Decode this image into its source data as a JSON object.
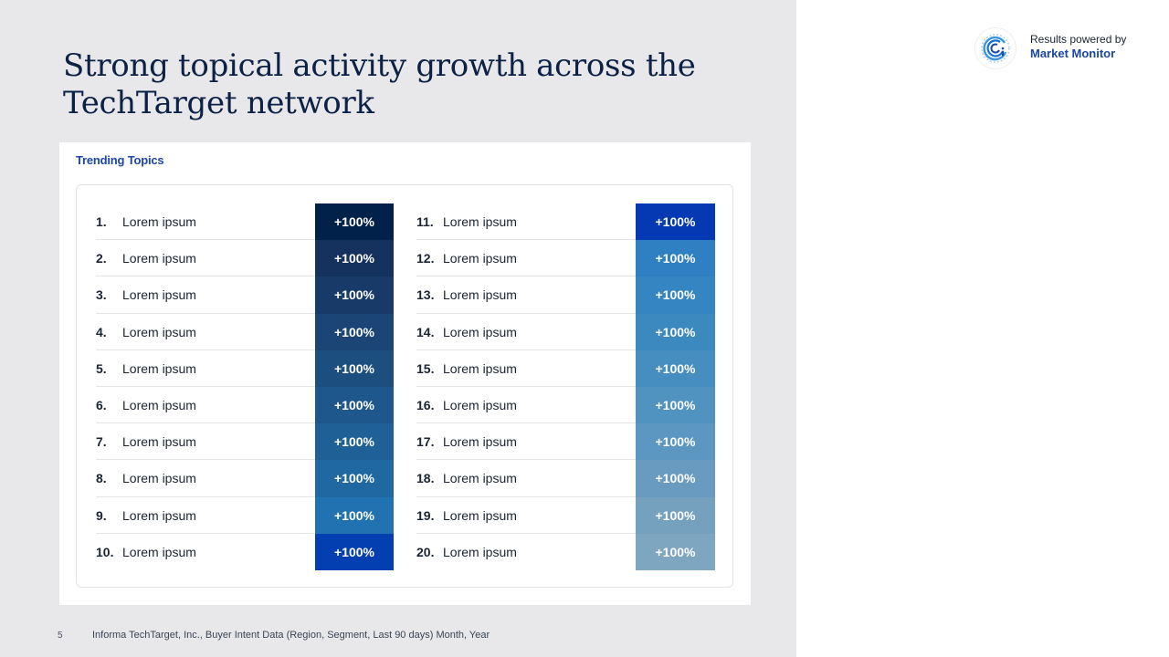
{
  "slide": {
    "title": "Strong topical activity growth across the TechTarget network",
    "page_number": "5",
    "source": "Informa TechTarget, Inc., Buyer Intent Data (Region, Segment, Last 90 days) Month, Year"
  },
  "brand": {
    "line1": "Results powered by",
    "line2": "Market Monitor",
    "icon": "market-monitor-logo-icon"
  },
  "card": {
    "title": "Trending Topics"
  },
  "topics_left": [
    {
      "rank": "1.",
      "label": "Lorem ipsum",
      "change": "+100%",
      "color": "#02214a"
    },
    {
      "rank": "2.",
      "label": "Lorem ipsum",
      "change": "+100%",
      "color": "#15315e"
    },
    {
      "rank": "3.",
      "label": "Lorem ipsum",
      "change": "+100%",
      "color": "#173a68"
    },
    {
      "rank": "4.",
      "label": "Lorem ipsum",
      "change": "+100%",
      "color": "#1a4574"
    },
    {
      "rank": "5.",
      "label": "Lorem ipsum",
      "change": "+100%",
      "color": "#1c4f80"
    },
    {
      "rank": "6.",
      "label": "Lorem ipsum",
      "change": "+100%",
      "color": "#1e578b"
    },
    {
      "rank": "7.",
      "label": "Lorem ipsum",
      "change": "+100%",
      "color": "#1f6096"
    },
    {
      "rank": "8.",
      "label": "Lorem ipsum",
      "change": "+100%",
      "color": "#1f68a2"
    },
    {
      "rank": "9.",
      "label": "Lorem ipsum",
      "change": "+100%",
      "color": "#2072b0"
    },
    {
      "rank": "10.",
      "label": "Lorem ipsum",
      "change": "+100%",
      "color": "#033fb0"
    }
  ],
  "topics_right": [
    {
      "rank": "11.",
      "label": "Lorem ipsum",
      "change": "+100%",
      "color": "#0439b3"
    },
    {
      "rank": "12.",
      "label": "Lorem ipsum",
      "change": "+100%",
      "color": "#2e80c2"
    },
    {
      "rank": "13.",
      "label": "Lorem ipsum",
      "change": "+100%",
      "color": "#3585c2"
    },
    {
      "rank": "14.",
      "label": "Lorem ipsum",
      "change": "+100%",
      "color": "#3c89c0"
    },
    {
      "rank": "15.",
      "label": "Lorem ipsum",
      "change": "+100%",
      "color": "#458ebf"
    },
    {
      "rank": "16.",
      "label": "Lorem ipsum",
      "change": "+100%",
      "color": "#5092c0"
    },
    {
      "rank": "17.",
      "label": "Lorem ipsum",
      "change": "+100%",
      "color": "#5b97c0"
    },
    {
      "rank": "18.",
      "label": "Lorem ipsum",
      "change": "+100%",
      "color": "#689bbf"
    },
    {
      "rank": "19.",
      "label": "Lorem ipsum",
      "change": "+100%",
      "color": "#75a1bf"
    },
    {
      "rank": "20.",
      "label": "Lorem ipsum",
      "change": "+100%",
      "color": "#7ea6c0"
    }
  ]
}
